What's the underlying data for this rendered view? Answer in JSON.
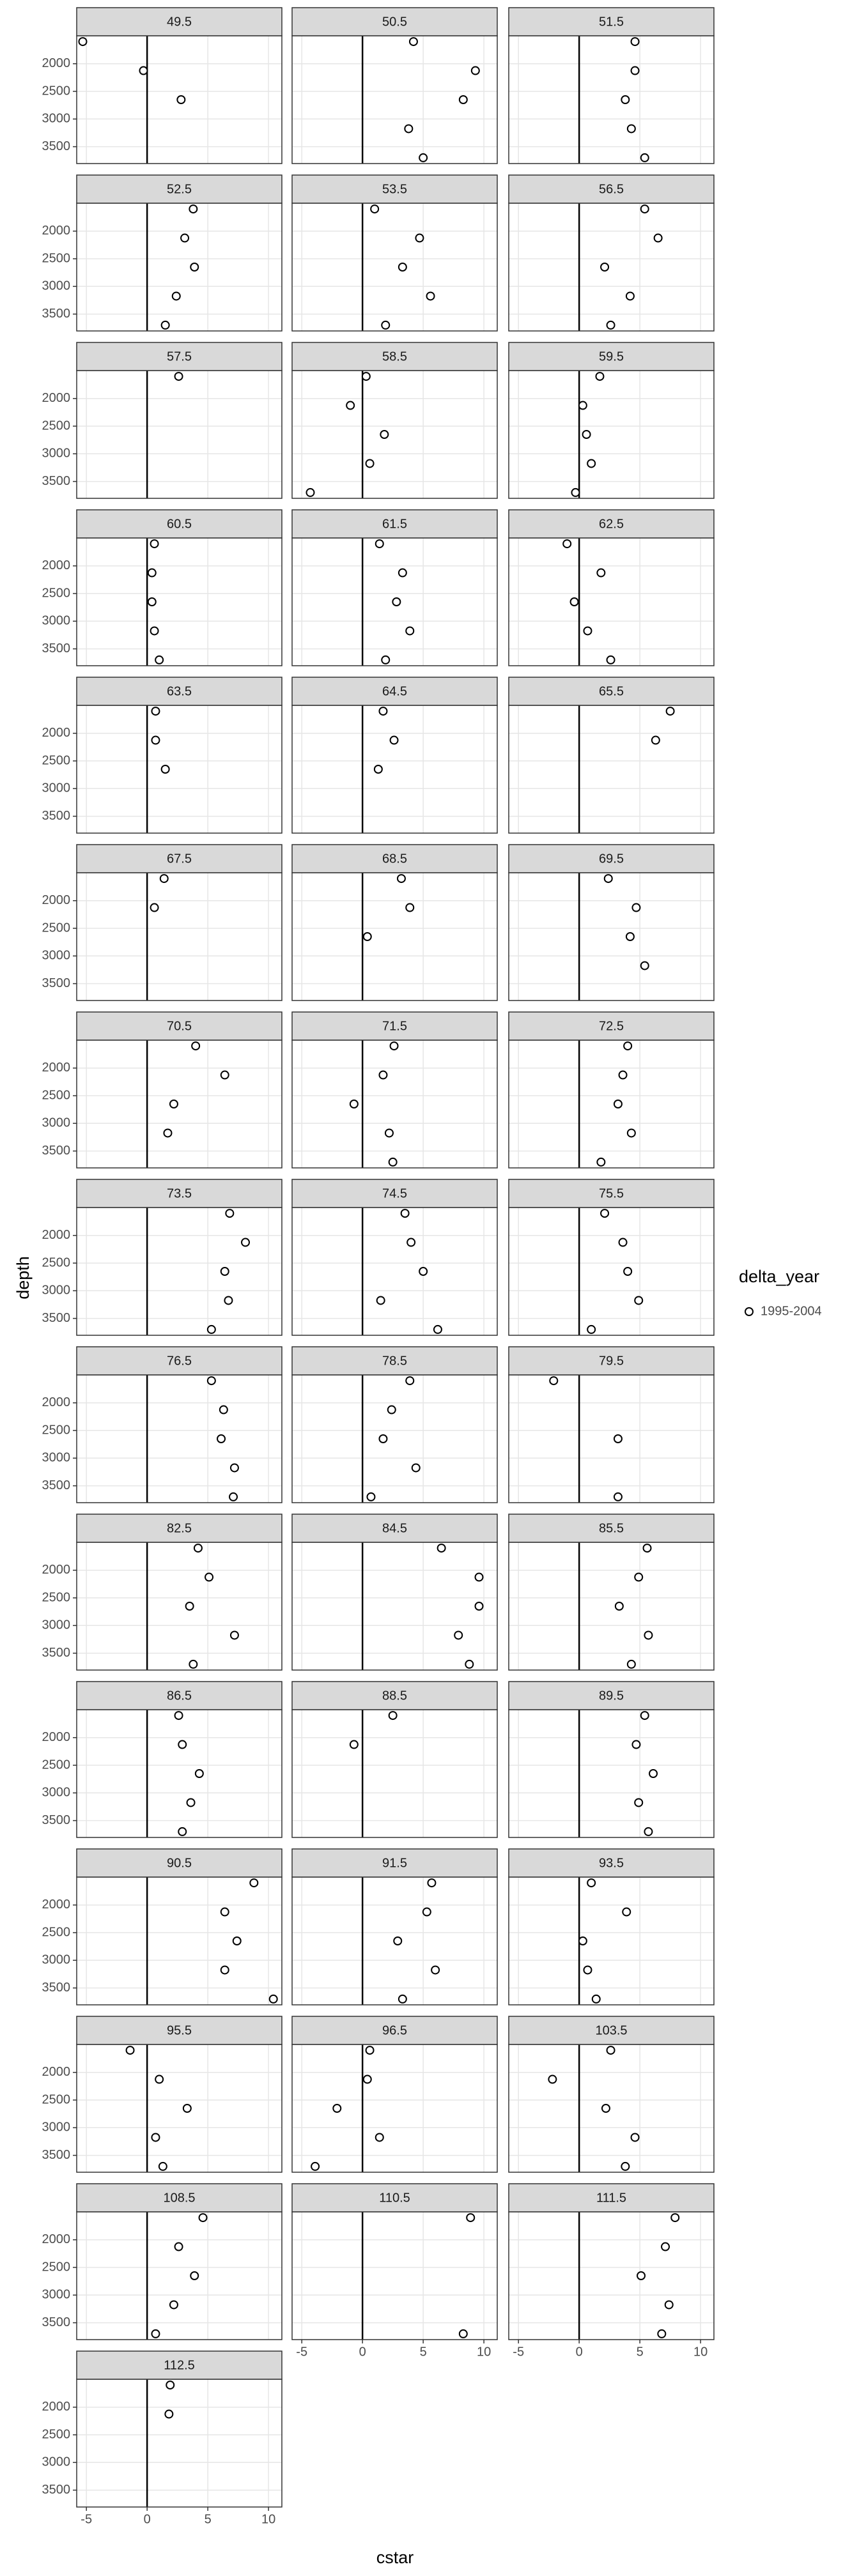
{
  "chart_data": {
    "type": "scatter",
    "x_label": "cstar",
    "y_label": "depth",
    "legend_title": "delta_year",
    "series_name": "1995-2004",
    "color": "#000000",
    "fill": "#ffffff",
    "xlim": [
      -5.8,
      11.1
    ],
    "xticks": [
      -5,
      0,
      5,
      10
    ],
    "ylim": [
      3805,
      1495
    ],
    "yticks": [
      2000,
      2500,
      3000,
      3500
    ],
    "vline": 0,
    "grid": true,
    "columns": 3,
    "panels": [
      {
        "title": "49.5",
        "x": [
          -5.3,
          -0.3,
          2.8
        ],
        "y": [
          1600,
          2125,
          2650
        ]
      },
      {
        "title": "50.5",
        "x": [
          4.2,
          9.3,
          8.3,
          3.8,
          5.0
        ],
        "y": [
          1600,
          2125,
          2650,
          3175,
          3700
        ]
      },
      {
        "title": "51.5",
        "x": [
          4.6,
          4.6,
          3.8,
          4.3,
          5.4
        ],
        "y": [
          1600,
          2125,
          2650,
          3175,
          3700
        ]
      },
      {
        "title": "52.5",
        "x": [
          3.8,
          3.1,
          3.9,
          2.4,
          1.5
        ],
        "y": [
          1600,
          2125,
          2650,
          3175,
          3700
        ]
      },
      {
        "title": "53.5",
        "x": [
          1.0,
          4.7,
          3.3,
          5.6,
          1.9
        ],
        "y": [
          1600,
          2125,
          2650,
          3175,
          3700
        ]
      },
      {
        "title": "56.5",
        "x": [
          5.4,
          6.5,
          2.1,
          4.2,
          2.6
        ],
        "y": [
          1600,
          2125,
          2650,
          3175,
          3700
        ]
      },
      {
        "title": "57.5",
        "x": [
          2.6
        ],
        "y": [
          1600
        ]
      },
      {
        "title": "58.5",
        "x": [
          0.3,
          -1.0,
          1.8,
          0.6,
          -4.3
        ],
        "y": [
          1600,
          2125,
          2650,
          3175,
          3700
        ]
      },
      {
        "title": "59.5",
        "x": [
          1.7,
          0.3,
          0.6,
          1.0,
          -0.3
        ],
        "y": [
          1600,
          2125,
          2650,
          3175,
          3700
        ]
      },
      {
        "title": "60.5",
        "x": [
          0.6,
          0.4,
          0.4,
          0.6,
          1.0
        ],
        "y": [
          1600,
          2125,
          2650,
          3175,
          3700
        ]
      },
      {
        "title": "61.5",
        "x": [
          1.4,
          3.3,
          2.8,
          3.9,
          1.9
        ],
        "y": [
          1600,
          2125,
          2650,
          3175,
          3700
        ]
      },
      {
        "title": "62.5",
        "x": [
          -1.0,
          1.8,
          -0.4,
          0.7,
          2.6
        ],
        "y": [
          1600,
          2125,
          2650,
          3175,
          3700
        ]
      },
      {
        "title": "63.5",
        "x": [
          0.7,
          0.7,
          1.5
        ],
        "y": [
          1600,
          2125,
          2650
        ]
      },
      {
        "title": "64.5",
        "x": [
          1.7,
          2.6,
          1.3
        ],
        "y": [
          1600,
          2125,
          2650
        ]
      },
      {
        "title": "65.5",
        "x": [
          7.5,
          6.3
        ],
        "y": [
          1600,
          2125
        ]
      },
      {
        "title": "67.5",
        "x": [
          1.4,
          0.6
        ],
        "y": [
          1600,
          2125
        ]
      },
      {
        "title": "68.5",
        "x": [
          3.2,
          3.9,
          0.4
        ],
        "y": [
          1600,
          2125,
          2650
        ]
      },
      {
        "title": "69.5",
        "x": [
          2.4,
          4.7,
          4.2,
          5.4
        ],
        "y": [
          1600,
          2125,
          2650,
          3175
        ]
      },
      {
        "title": "70.5",
        "x": [
          4.0,
          6.4,
          2.2,
          1.7
        ],
        "y": [
          1600,
          2125,
          2650,
          3175
        ]
      },
      {
        "title": "71.5",
        "x": [
          2.6,
          1.7,
          -0.7,
          2.2,
          2.5
        ],
        "y": [
          1600,
          2125,
          2650,
          3175,
          3700
        ]
      },
      {
        "title": "72.5",
        "x": [
          4.0,
          3.6,
          3.2,
          4.3,
          1.8
        ],
        "y": [
          1600,
          2125,
          2650,
          3175,
          3700
        ]
      },
      {
        "title": "73.5",
        "x": [
          6.8,
          8.1,
          6.4,
          6.7,
          5.3
        ],
        "y": [
          1600,
          2125,
          2650,
          3175,
          3700
        ]
      },
      {
        "title": "74.5",
        "x": [
          3.5,
          4.0,
          5.0,
          1.5,
          6.2
        ],
        "y": [
          1600,
          2125,
          2650,
          3175,
          3700
        ]
      },
      {
        "title": "75.5",
        "x": [
          2.1,
          3.6,
          4.0,
          4.9,
          1.0
        ],
        "y": [
          1600,
          2125,
          2650,
          3175,
          3700
        ]
      },
      {
        "title": "76.5",
        "x": [
          5.3,
          6.3,
          6.1,
          7.2,
          7.1
        ],
        "y": [
          1600,
          2125,
          2650,
          3175,
          3700
        ]
      },
      {
        "title": "78.5",
        "x": [
          3.9,
          2.4,
          1.7,
          4.4,
          0.7
        ],
        "y": [
          1600,
          2125,
          2650,
          3175,
          3700
        ]
      },
      {
        "title": "79.5",
        "x": [
          -2.1,
          3.2,
          3.2
        ],
        "y": [
          1600,
          2650,
          3700
        ]
      },
      {
        "title": "82.5",
        "x": [
          4.2,
          5.1,
          3.5,
          7.2,
          3.8
        ],
        "y": [
          1600,
          2125,
          2650,
          3175,
          3700
        ]
      },
      {
        "title": "84.5",
        "x": [
          6.5,
          9.6,
          9.6,
          7.9,
          8.8
        ],
        "y": [
          1600,
          2125,
          2650,
          3175,
          3700
        ]
      },
      {
        "title": "85.5",
        "x": [
          5.6,
          4.9,
          3.3,
          5.7,
          4.3
        ],
        "y": [
          1600,
          2125,
          2650,
          3175,
          3700
        ]
      },
      {
        "title": "86.5",
        "x": [
          2.6,
          2.9,
          4.3,
          3.6,
          2.9
        ],
        "y": [
          1600,
          2125,
          2650,
          3175,
          3700
        ]
      },
      {
        "title": "88.5",
        "x": [
          2.5,
          -0.7
        ],
        "y": [
          1600,
          2125
        ]
      },
      {
        "title": "89.5",
        "x": [
          5.4,
          4.7,
          6.1,
          4.9,
          5.7
        ],
        "y": [
          1600,
          2125,
          2650,
          3175,
          3700
        ]
      },
      {
        "title": "90.5",
        "x": [
          8.8,
          6.4,
          7.4,
          6.4,
          10.4
        ],
        "y": [
          1600,
          2125,
          2650,
          3175,
          3700
        ]
      },
      {
        "title": "91.5",
        "x": [
          5.7,
          5.3,
          2.9,
          6.0,
          3.3
        ],
        "y": [
          1600,
          2125,
          2650,
          3175,
          3700
        ]
      },
      {
        "title": "93.5",
        "x": [
          1.0,
          3.9,
          0.3,
          0.7,
          1.4
        ],
        "y": [
          1600,
          2125,
          2650,
          3175,
          3700
        ]
      },
      {
        "title": "95.5",
        "x": [
          -1.4,
          1.0,
          3.3,
          0.7,
          1.3
        ],
        "y": [
          1600,
          2125,
          2650,
          3175,
          3700
        ]
      },
      {
        "title": "96.5",
        "x": [
          0.6,
          0.4,
          -2.1,
          1.4,
          -3.9
        ],
        "y": [
          1600,
          2125,
          2650,
          3175,
          3700
        ]
      },
      {
        "title": "103.5",
        "x": [
          2.6,
          -2.2,
          2.2,
          4.6,
          3.8
        ],
        "y": [
          1600,
          2125,
          2650,
          3175,
          3700
        ]
      },
      {
        "title": "108.5",
        "x": [
          4.6,
          2.6,
          3.9,
          2.2,
          0.7
        ],
        "y": [
          1600,
          2125,
          2650,
          3175,
          3700
        ]
      },
      {
        "title": "110.5",
        "x": [
          8.9,
          8.3
        ],
        "y": [
          1600,
          3700
        ]
      },
      {
        "title": "111.5",
        "x": [
          7.9,
          7.1,
          5.1,
          7.4,
          6.8
        ],
        "y": [
          1600,
          2125,
          2650,
          3175,
          3700
        ]
      },
      {
        "title": "112.5",
        "x": [
          1.9,
          1.8
        ],
        "y": [
          1600,
          2125
        ]
      }
    ]
  }
}
